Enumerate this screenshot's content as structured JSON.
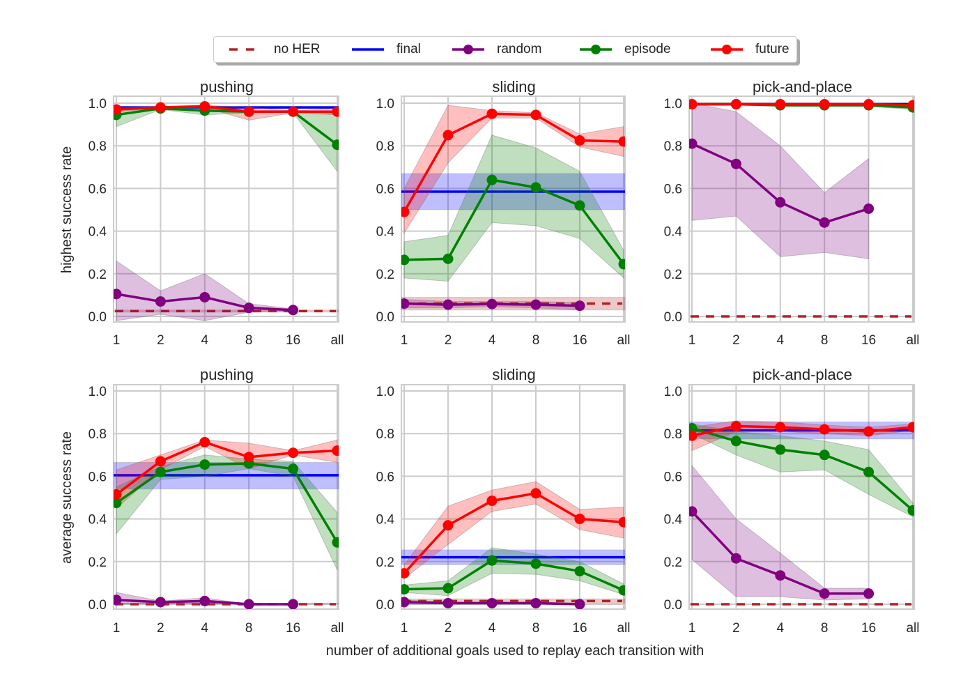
{
  "figure": {
    "xlabel": "number of additional goals used to replay each transition with"
  },
  "legend": {
    "placement": "top-center",
    "items": [
      {
        "name": "no HER",
        "color": "#b22222",
        "style": "dashed",
        "marker": false
      },
      {
        "name": "final",
        "color": "#0000ff",
        "style": "solid",
        "marker": false
      },
      {
        "name": "random",
        "color": "#800080",
        "style": "solid",
        "marker": true
      },
      {
        "name": "episode",
        "color": "#008000",
        "style": "solid",
        "marker": true
      },
      {
        "name": "future",
        "color": "#ff0000",
        "style": "solid",
        "marker": true
      }
    ]
  },
  "chart_data": [
    {
      "type": "line",
      "title": "pushing",
      "ylabel": "highest success rate",
      "categories": [
        "1",
        "2",
        "4",
        "8",
        "16",
        "all"
      ],
      "ylim": [
        0,
        1.0
      ],
      "yticks": [
        "0.0",
        "0.2",
        "0.4",
        "0.6",
        "0.8",
        "1.0"
      ],
      "grid": true,
      "baselines": [
        {
          "name": "no HER",
          "value": 0.025,
          "band": [
            0.02,
            0.03
          ]
        },
        {
          "name": "final",
          "value": 0.98,
          "band": [
            0.975,
            0.985
          ]
        }
      ],
      "series": [
        {
          "name": "random",
          "values": [
            0.105,
            0.07,
            0.09,
            0.04,
            0.03,
            null
          ],
          "lower": [
            -0.02,
            0.01,
            -0.02,
            0.02,
            0.025,
            null
          ],
          "upper": [
            0.26,
            0.12,
            0.2,
            0.06,
            0.035,
            null
          ]
        },
        {
          "name": "episode",
          "values": [
            0.945,
            0.975,
            0.965,
            0.96,
            0.96,
            0.805
          ],
          "lower": [
            0.89,
            0.97,
            0.945,
            0.955,
            0.955,
            0.68
          ],
          "upper": [
            0.975,
            0.98,
            0.975,
            0.965,
            0.965,
            0.95
          ]
        },
        {
          "name": "future",
          "values": [
            0.97,
            0.98,
            0.985,
            0.96,
            0.96,
            0.96
          ],
          "lower": [
            0.96,
            0.975,
            0.98,
            0.92,
            0.955,
            0.945
          ],
          "upper": [
            0.98,
            0.985,
            0.99,
            0.98,
            0.965,
            0.975
          ]
        }
      ]
    },
    {
      "type": "line",
      "title": "sliding",
      "ylabel": "",
      "categories": [
        "1",
        "2",
        "4",
        "8",
        "16",
        "all"
      ],
      "ylim": [
        0,
        1.0
      ],
      "yticks": [
        "0.0",
        "0.2",
        "0.4",
        "0.6",
        "0.8",
        "1.0"
      ],
      "grid": true,
      "baselines": [
        {
          "name": "no HER",
          "value": 0.06,
          "band": [
            0.03,
            0.09
          ]
        },
        {
          "name": "final",
          "value": 0.585,
          "band": [
            0.5,
            0.67
          ]
        }
      ],
      "series": [
        {
          "name": "random",
          "values": [
            0.06,
            0.055,
            0.058,
            0.055,
            0.05,
            null
          ],
          "lower": [
            0.04,
            0.04,
            0.045,
            0.04,
            0.03,
            null
          ],
          "upper": [
            0.08,
            0.07,
            0.07,
            0.07,
            0.065,
            null
          ]
        },
        {
          "name": "episode",
          "values": [
            0.265,
            0.27,
            0.64,
            0.605,
            0.52,
            0.245
          ],
          "lower": [
            0.18,
            0.165,
            0.44,
            0.425,
            0.365,
            0.18
          ],
          "upper": [
            0.35,
            0.38,
            0.85,
            0.79,
            0.68,
            0.31
          ]
        },
        {
          "name": "future",
          "values": [
            0.49,
            0.85,
            0.95,
            0.945,
            0.825,
            0.82
          ],
          "lower": [
            0.39,
            0.72,
            0.93,
            0.93,
            0.795,
            0.75
          ],
          "upper": [
            0.6,
            0.99,
            0.965,
            0.955,
            0.855,
            0.89
          ]
        }
      ]
    },
    {
      "type": "line",
      "title": "pick-and-place",
      "ylabel": "",
      "categories": [
        "1",
        "2",
        "4",
        "8",
        "16",
        "all"
      ],
      "ylim": [
        0,
        1.0
      ],
      "yticks": [
        "0.0",
        "0.2",
        "0.4",
        "0.6",
        "0.8",
        "1.0"
      ],
      "grid": true,
      "baselines": [
        {
          "name": "no HER",
          "value": 0.0,
          "band": [
            0.0,
            0.0
          ]
        },
        {
          "name": "final",
          "value": 0.995,
          "band": [
            0.99,
            1.0
          ]
        }
      ],
      "series": [
        {
          "name": "random",
          "values": [
            0.81,
            0.715,
            0.535,
            0.44,
            0.505,
            null
          ],
          "lower": [
            0.45,
            0.47,
            0.28,
            0.3,
            0.27,
            null
          ],
          "upper": [
            1.0,
            0.96,
            0.8,
            0.58,
            0.74,
            null
          ]
        },
        {
          "name": "episode",
          "values": [
            0.995,
            0.995,
            0.99,
            0.99,
            0.99,
            0.98
          ],
          "lower": [
            0.99,
            0.99,
            0.985,
            0.985,
            0.985,
            0.97
          ],
          "upper": [
            1.0,
            1.0,
            0.995,
            0.995,
            0.995,
            0.99
          ]
        },
        {
          "name": "future",
          "values": [
            0.995,
            0.995,
            0.995,
            0.995,
            0.995,
            0.99
          ],
          "lower": [
            0.99,
            0.99,
            0.99,
            0.99,
            0.99,
            0.985
          ],
          "upper": [
            1.0,
            1.0,
            1.0,
            1.0,
            1.0,
            0.995
          ]
        }
      ]
    },
    {
      "type": "line",
      "title": "pushing",
      "ylabel": "average success rate",
      "categories": [
        "1",
        "2",
        "4",
        "8",
        "16",
        "all"
      ],
      "ylim": [
        0,
        1.0
      ],
      "yticks": [
        "0.0",
        "0.2",
        "0.4",
        "0.6",
        "0.8",
        "1.0"
      ],
      "grid": true,
      "baselines": [
        {
          "name": "no HER",
          "value": 0.0,
          "band": [
            0.0,
            0.005
          ]
        },
        {
          "name": "final",
          "value": 0.605,
          "band": [
            0.54,
            0.665
          ]
        }
      ],
      "series": [
        {
          "name": "random",
          "values": [
            0.02,
            0.01,
            0.015,
            0.0,
            0.0,
            null
          ],
          "lower": [
            0.0,
            0.005,
            0.005,
            0.0,
            0.0,
            null
          ],
          "upper": [
            0.055,
            0.015,
            0.03,
            0.0,
            0.0,
            null
          ]
        },
        {
          "name": "episode",
          "values": [
            0.475,
            0.62,
            0.655,
            0.66,
            0.635,
            0.29
          ],
          "lower": [
            0.33,
            0.585,
            0.6,
            0.635,
            0.6,
            0.16
          ],
          "upper": [
            0.55,
            0.645,
            0.7,
            0.68,
            0.67,
            0.43
          ]
        },
        {
          "name": "future",
          "values": [
            0.515,
            0.67,
            0.76,
            0.69,
            0.71,
            0.72
          ],
          "lower": [
            0.45,
            0.63,
            0.74,
            0.635,
            0.7,
            0.665
          ],
          "upper": [
            0.63,
            0.7,
            0.77,
            0.755,
            0.72,
            0.77
          ]
        }
      ]
    },
    {
      "type": "line",
      "title": "sliding",
      "ylabel": "",
      "categories": [
        "1",
        "2",
        "4",
        "8",
        "16",
        "all"
      ],
      "ylim": [
        0,
        1.0
      ],
      "yticks": [
        "0.0",
        "0.2",
        "0.4",
        "0.6",
        "0.8",
        "1.0"
      ],
      "grid": true,
      "baselines": [
        {
          "name": "no HER",
          "value": 0.015,
          "band": [
            0.005,
            0.025
          ]
        },
        {
          "name": "final",
          "value": 0.22,
          "band": [
            0.185,
            0.255
          ]
        }
      ],
      "series": [
        {
          "name": "random",
          "values": [
            0.01,
            0.005,
            0.005,
            0.005,
            0.0,
            null
          ],
          "lower": [
            0.0,
            0.0,
            0.0,
            0.0,
            0.0,
            null
          ],
          "upper": [
            0.02,
            0.01,
            0.01,
            0.01,
            0.005,
            null
          ]
        },
        {
          "name": "episode",
          "values": [
            0.07,
            0.075,
            0.205,
            0.19,
            0.155,
            0.065
          ],
          "lower": [
            0.055,
            0.04,
            0.145,
            0.14,
            0.11,
            0.045
          ],
          "upper": [
            0.09,
            0.11,
            0.265,
            0.235,
            0.2,
            0.095
          ]
        },
        {
          "name": "future",
          "values": [
            0.145,
            0.37,
            0.485,
            0.52,
            0.4,
            0.385
          ],
          "lower": [
            0.12,
            0.28,
            0.435,
            0.47,
            0.35,
            0.31
          ],
          "upper": [
            0.185,
            0.46,
            0.535,
            0.575,
            0.445,
            0.455
          ]
        }
      ]
    },
    {
      "type": "line",
      "title": "pick-and-place",
      "ylabel": "",
      "categories": [
        "1",
        "2",
        "4",
        "8",
        "16",
        "all"
      ],
      "ylim": [
        0,
        1.0
      ],
      "yticks": [
        "0.0",
        "0.2",
        "0.4",
        "0.6",
        "0.8",
        "1.0"
      ],
      "grid": true,
      "baselines": [
        {
          "name": "no HER",
          "value": 0.0,
          "band": [
            0.0,
            0.0
          ]
        },
        {
          "name": "final",
          "value": 0.815,
          "band": [
            0.775,
            0.855
          ]
        }
      ],
      "series": [
        {
          "name": "random",
          "values": [
            0.435,
            0.215,
            0.135,
            0.05,
            0.05,
            null
          ],
          "lower": [
            0.21,
            0.035,
            0.035,
            0.02,
            0.025,
            null
          ],
          "upper": [
            0.65,
            0.4,
            0.24,
            0.075,
            0.075,
            null
          ]
        },
        {
          "name": "episode",
          "values": [
            0.825,
            0.765,
            0.725,
            0.7,
            0.62,
            0.44
          ],
          "lower": [
            0.8,
            0.7,
            0.62,
            0.63,
            0.515,
            0.41
          ],
          "upper": [
            0.845,
            0.81,
            0.79,
            0.765,
            0.725,
            0.475
          ]
        },
        {
          "name": "future",
          "values": [
            0.79,
            0.835,
            0.83,
            0.82,
            0.81,
            0.83
          ],
          "lower": [
            0.72,
            0.81,
            0.81,
            0.8,
            0.79,
            0.815
          ],
          "upper": [
            0.83,
            0.86,
            0.855,
            0.84,
            0.83,
            0.845
          ]
        }
      ]
    }
  ]
}
